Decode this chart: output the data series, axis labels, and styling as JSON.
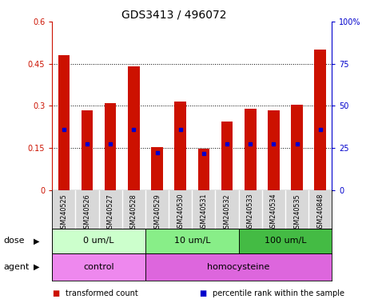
{
  "title": "GDS3413 / 496072",
  "samples": [
    "GSM240525",
    "GSM240526",
    "GSM240527",
    "GSM240528",
    "GSM240529",
    "GSM240530",
    "GSM240531",
    "GSM240532",
    "GSM240533",
    "GSM240534",
    "GSM240535",
    "GSM240848"
  ],
  "red_values": [
    0.48,
    0.285,
    0.31,
    0.44,
    0.155,
    0.315,
    0.148,
    0.245,
    0.29,
    0.285,
    0.305,
    0.5
  ],
  "blue_values": [
    0.215,
    0.165,
    0.165,
    0.215,
    0.135,
    0.215,
    0.13,
    0.165,
    0.165,
    0.165,
    0.165,
    0.215
  ],
  "ylim_left": [
    0,
    0.6
  ],
  "ylim_right": [
    0,
    100
  ],
  "yticks_left": [
    0,
    0.15,
    0.3,
    0.45,
    0.6
  ],
  "ytick_labels_left": [
    "0",
    "0.15",
    "0.3",
    "0.45",
    "0.6"
  ],
  "yticks_right": [
    0,
    25,
    50,
    75,
    100
  ],
  "ytick_labels_right": [
    "0",
    "25",
    "50",
    "75",
    "100%"
  ],
  "hlines": [
    0.15,
    0.3,
    0.45
  ],
  "dose_groups": [
    {
      "label": "0 um/L",
      "start": 0,
      "end": 4,
      "color": "#ccffcc"
    },
    {
      "label": "10 um/L",
      "start": 4,
      "end": 8,
      "color": "#88ee88"
    },
    {
      "label": "100 um/L",
      "start": 8,
      "end": 12,
      "color": "#44bb44"
    }
  ],
  "agent_groups": [
    {
      "label": "control",
      "start": 0,
      "end": 4,
      "color": "#ee88ee"
    },
    {
      "label": "homocysteine",
      "start": 4,
      "end": 12,
      "color": "#dd66dd"
    }
  ],
  "bar_color_red": "#cc1100",
  "bar_color_blue": "#0000cc",
  "bar_width": 0.5,
  "axis_color_left": "#cc1100",
  "axis_color_right": "#0000cc",
  "legend_items": [
    {
      "color": "#cc1100",
      "label": "transformed count"
    },
    {
      "color": "#0000cc",
      "label": "percentile rank within the sample"
    }
  ],
  "dose_label": "dose",
  "agent_label": "agent",
  "sample_bg": "#d8d8d8",
  "title_fontsize": 10,
  "tick_fontsize": 7,
  "sample_fontsize": 5.8,
  "annot_fontsize": 8,
  "legend_fontsize": 7
}
